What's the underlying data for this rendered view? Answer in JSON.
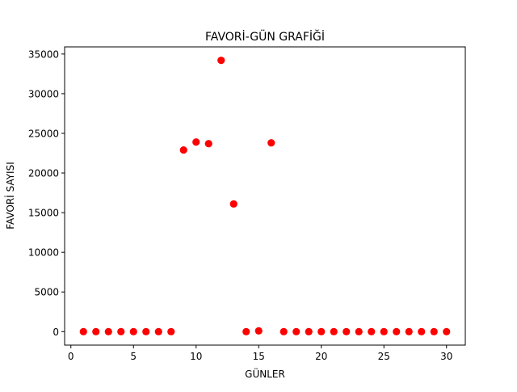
{
  "chart_data": {
    "type": "scatter",
    "title": "FAVORİ-GÜN GRAFİĞİ",
    "xlabel": "GÜNLER",
    "ylabel": "FAVORİ SAYISI",
    "xlim": [
      -0.5,
      31.5
    ],
    "ylim": [
      -1700,
      35900
    ],
    "xticks": [
      0,
      5,
      10,
      15,
      20,
      25,
      30
    ],
    "yticks": [
      0,
      5000,
      10000,
      15000,
      20000,
      25000,
      30000,
      35000
    ],
    "grid": false,
    "marker_color": "#ff0000",
    "x": [
      1,
      2,
      3,
      4,
      5,
      6,
      7,
      8,
      9,
      10,
      11,
      12,
      13,
      14,
      15,
      16,
      17,
      18,
      19,
      20,
      21,
      22,
      23,
      24,
      25,
      26,
      27,
      28,
      29,
      30
    ],
    "y": [
      0,
      0,
      0,
      0,
      0,
      0,
      0,
      0,
      22900,
      23900,
      23700,
      34200,
      16100,
      0,
      100,
      23800,
      0,
      0,
      0,
      0,
      0,
      0,
      0,
      0,
      0,
      0,
      0,
      0,
      0,
      0
    ]
  }
}
